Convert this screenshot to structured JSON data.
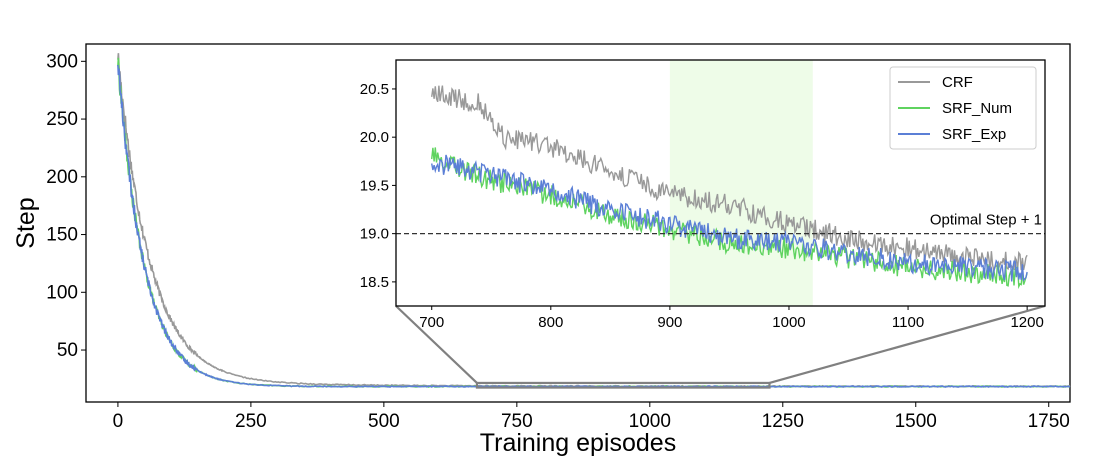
{
  "chart_data": [
    {
      "type": "line",
      "title": "",
      "xlabel": "Training episodes",
      "ylabel": "Step",
      "xlim": [
        -60,
        1790
      ],
      "ylim": [
        5,
        315
      ],
      "xticks": [
        0,
        250,
        500,
        750,
        1000,
        1250,
        1500,
        1750
      ],
      "yticks": [
        50,
        100,
        150,
        200,
        250,
        300
      ],
      "x_range": [
        0,
        1790
      ],
      "series": [
        {
          "color": "#999999",
          "start": 300,
          "floor": 18.6,
          "tau": 60
        },
        {
          "color": "#5fd35f",
          "start": 300,
          "floor": 18.4,
          "tau": 50
        },
        {
          "color": "#5b7fd6",
          "start": 300,
          "floor": 18.4,
          "tau": 50
        }
      ],
      "grid": false
    },
    {
      "type": "line",
      "title": "",
      "xlim": [
        670,
        1215
      ],
      "ylim": [
        18.25,
        20.8
      ],
      "xticks": [
        700,
        800,
        900,
        1000,
        1100,
        1200
      ],
      "yticks": [
        18.5,
        19.0,
        19.5,
        20.0,
        20.5
      ],
      "highlight_region": {
        "x": [
          900,
          1020
        ],
        "color": "#eefce8"
      },
      "reference_line": {
        "y": 19.0,
        "label": "Optimal Step + 1"
      },
      "legend_position": "top-right",
      "series": [
        {
          "name": "CRF",
          "color": "#999999",
          "anchors": [
            [
              700,
              20.45
            ],
            [
              740,
              20.35
            ],
            [
              760,
              20.0
            ],
            [
              800,
              19.9
            ],
            [
              850,
              19.65
            ],
            [
              900,
              19.4
            ],
            [
              950,
              19.3
            ],
            [
              1000,
              19.1
            ],
            [
              1050,
              18.95
            ],
            [
              1100,
              18.85
            ],
            [
              1150,
              18.75
            ],
            [
              1200,
              18.7
            ]
          ]
        },
        {
          "name": "SRF_Num",
          "color": "#5fd35f",
          "anchors": [
            [
              700,
              19.8
            ],
            [
              750,
              19.55
            ],
            [
              800,
              19.4
            ],
            [
              850,
              19.2
            ],
            [
              900,
              19.05
            ],
            [
              950,
              18.9
            ],
            [
              1000,
              18.85
            ],
            [
              1050,
              18.75
            ],
            [
              1100,
              18.65
            ],
            [
              1150,
              18.6
            ],
            [
              1200,
              18.55
            ]
          ]
        },
        {
          "name": "SRF_Exp",
          "color": "#5b7fd6",
          "anchors": [
            [
              700,
              19.75
            ],
            [
              750,
              19.6
            ],
            [
              800,
              19.45
            ],
            [
              850,
              19.25
            ],
            [
              900,
              19.1
            ],
            [
              950,
              18.95
            ],
            [
              1000,
              18.9
            ],
            [
              1050,
              18.8
            ],
            [
              1100,
              18.7
            ],
            [
              1150,
              18.65
            ],
            [
              1200,
              18.6
            ]
          ]
        }
      ],
      "grid": false
    }
  ]
}
